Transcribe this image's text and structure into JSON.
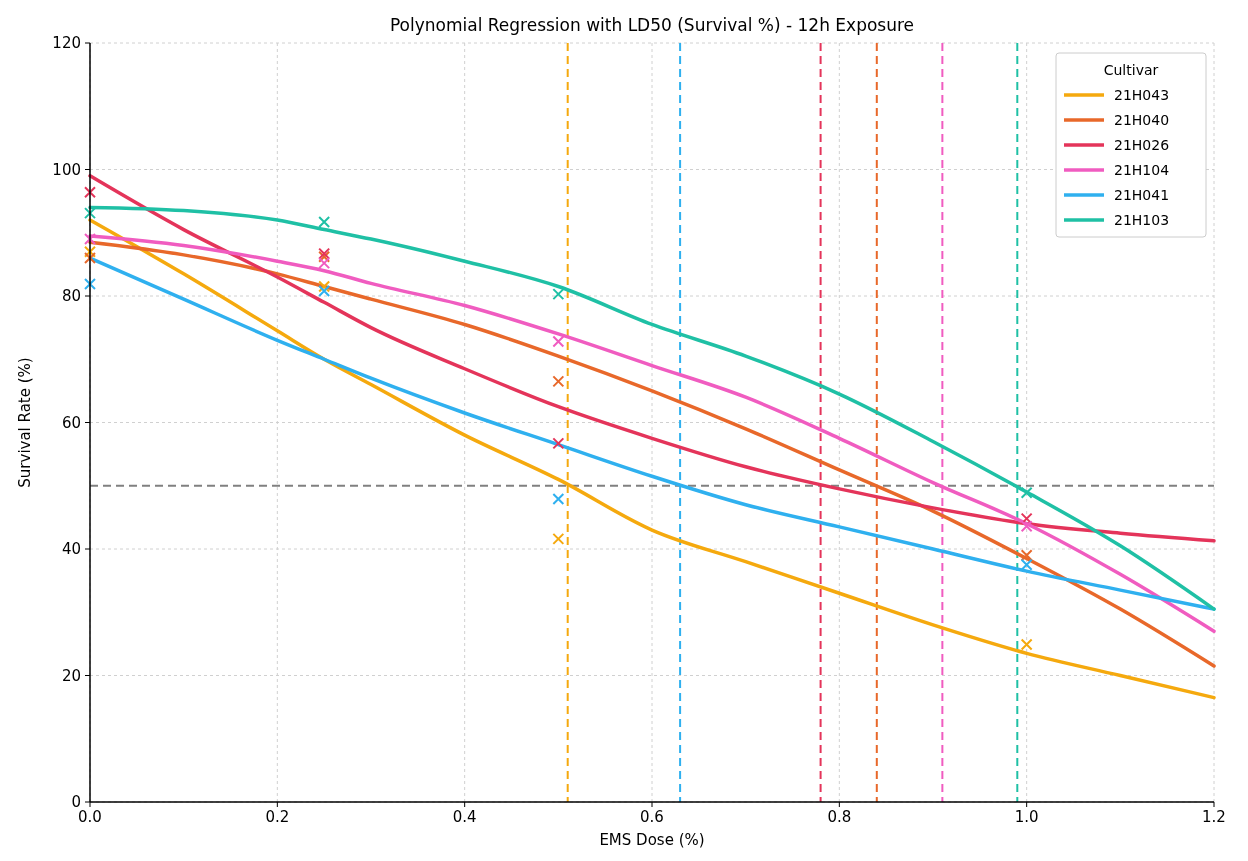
{
  "chart_data": {
    "type": "line",
    "title": "Polynomial Regression with LD50 (Survival %) - 12h Exposure",
    "xlabel": "EMS Dose (%)",
    "ylabel": "Survival Rate (%)",
    "legend_title": "Cultivar",
    "xlim": [
      0,
      1.2
    ],
    "ylim": [
      0,
      120
    ],
    "xticks": [
      {
        "value": 0,
        "label": "0.0"
      },
      {
        "value": 0.2,
        "label": "0.2"
      },
      {
        "value": 0.4,
        "label": "0.4"
      },
      {
        "value": 0.6,
        "label": "0.6"
      },
      {
        "value": 0.8,
        "label": "0.8"
      },
      {
        "value": 1,
        "label": "1.0"
      },
      {
        "value": 1.2,
        "label": "1.2"
      }
    ],
    "yticks": [
      0,
      20,
      40,
      60,
      80,
      100,
      120
    ],
    "grid": true,
    "legend": "top right",
    "series": [
      {
        "name": "21H043",
        "type": "line",
        "color": "#f5a90e",
        "x": [
          0,
          0.1,
          0.2,
          0.25,
          0.3,
          0.4,
          0.5,
          0.6,
          0.7,
          0.8,
          0.9,
          1.0,
          1.1,
          1.2
        ],
        "values": [
          92,
          83.5,
          74.5,
          70,
          66,
          58,
          51,
          43,
          38,
          33,
          28,
          23.5,
          20,
          16.5
        ]
      },
      {
        "name": "21H040",
        "type": "line",
        "color": "#e8682a",
        "x": [
          0,
          0.1,
          0.2,
          0.25,
          0.3,
          0.4,
          0.5,
          0.6,
          0.7,
          0.8,
          0.9,
          1.0,
          1.1,
          1.2
        ],
        "values": [
          88.5,
          86.5,
          83.5,
          81.5,
          79.5,
          75.5,
          70.5,
          65,
          59,
          52.5,
          46,
          38.5,
          30.5,
          21.5
        ]
      },
      {
        "name": "21H026",
        "type": "line",
        "color": "#e4345a",
        "x": [
          0,
          0.1,
          0.2,
          0.25,
          0.3,
          0.4,
          0.5,
          0.6,
          0.7,
          0.8,
          0.9,
          1.0,
          1.1,
          1.2
        ],
        "values": [
          99,
          90.5,
          83,
          79,
          75,
          68.5,
          62.5,
          57.5,
          53,
          49.5,
          46.5,
          44,
          42.5,
          41.3
        ]
      },
      {
        "name": "21H104",
        "type": "line",
        "color": "#f05cc0",
        "x": [
          0,
          0.1,
          0.2,
          0.25,
          0.3,
          0.4,
          0.5,
          0.6,
          0.7,
          0.8,
          0.9,
          1.0,
          1.1,
          1.2
        ],
        "values": [
          89.5,
          88,
          85.5,
          84,
          82,
          78.5,
          74,
          69,
          64,
          57.5,
          50.5,
          44,
          36,
          27
        ]
      },
      {
        "name": "21H041",
        "type": "line",
        "color": "#2fb0ef",
        "x": [
          0,
          0.1,
          0.2,
          0.25,
          0.3,
          0.4,
          0.5,
          0.6,
          0.7,
          0.8,
          0.9,
          1.0,
          1.1,
          1.2
        ],
        "values": [
          86,
          79.5,
          73,
          70,
          67,
          61.5,
          56.5,
          51.5,
          47,
          43.5,
          40,
          36.5,
          33.5,
          30.5
        ]
      },
      {
        "name": "21H103",
        "type": "line",
        "color": "#1fc0a5",
        "x": [
          0,
          0.1,
          0.2,
          0.25,
          0.3,
          0.4,
          0.5,
          0.6,
          0.7,
          0.8,
          0.9,
          1.0,
          1.1,
          1.2
        ],
        "values": [
          94,
          93.5,
          92,
          90.5,
          89,
          85.5,
          81.5,
          75.5,
          70.5,
          64.5,
          57,
          49,
          40.5,
          30.5
        ]
      },
      {
        "type": "scatter",
        "marker": "cross",
        "color": "#f5a90e",
        "x": [
          0,
          0.25,
          0.5,
          1.0
        ],
        "values": [
          87,
          81.5,
          41.6,
          24.9
        ]
      },
      {
        "type": "scatter",
        "marker": "cross",
        "color": "#e8682a",
        "x": [
          0,
          0.25,
          0.5,
          1.0
        ],
        "values": [
          86,
          86.2,
          66.5,
          39.0
        ]
      },
      {
        "type": "scatter",
        "marker": "cross",
        "color": "#e4345a",
        "x": [
          0,
          0.25,
          0.5,
          1.0
        ],
        "values": [
          96.4,
          86.7,
          56.7,
          44.8
        ]
      },
      {
        "type": "scatter",
        "marker": "cross",
        "color": "#f05cc0",
        "x": [
          0,
          0.25,
          0.5,
          1.0
        ],
        "values": [
          89,
          85.2,
          72.8,
          43.6
        ]
      },
      {
        "type": "scatter",
        "marker": "cross",
        "color": "#2fb0ef",
        "x": [
          0,
          0.25,
          0.5,
          1.0
        ],
        "values": [
          81.9,
          80.8,
          47.9,
          37.5
        ]
      },
      {
        "type": "scatter",
        "marker": "cross",
        "color": "#1fc0a5",
        "x": [
          0,
          0.25,
          0.5,
          1.0
        ],
        "values": [
          93.1,
          91.7,
          80.3,
          48.9
        ]
      }
    ],
    "ref_lines": [
      {
        "axis": "y",
        "value": 50,
        "color": "#808080",
        "line_style": "dashed"
      },
      {
        "axis": "x",
        "value": 0.51,
        "color": "#f5a90e",
        "line_style": "dashed"
      },
      {
        "axis": "x",
        "value": 0.63,
        "color": "#2fb0ef",
        "line_style": "dashed"
      },
      {
        "axis": "x",
        "value": 0.78,
        "color": "#e4345a",
        "line_style": "dashed"
      },
      {
        "axis": "x",
        "value": 0.84,
        "color": "#e8682a",
        "line_style": "dashed"
      },
      {
        "axis": "x",
        "value": 0.91,
        "color": "#f05cc0",
        "line_style": "dashed"
      },
      {
        "axis": "x",
        "value": 0.99,
        "color": "#1fc0a5",
        "line_style": "dashed"
      }
    ]
  }
}
